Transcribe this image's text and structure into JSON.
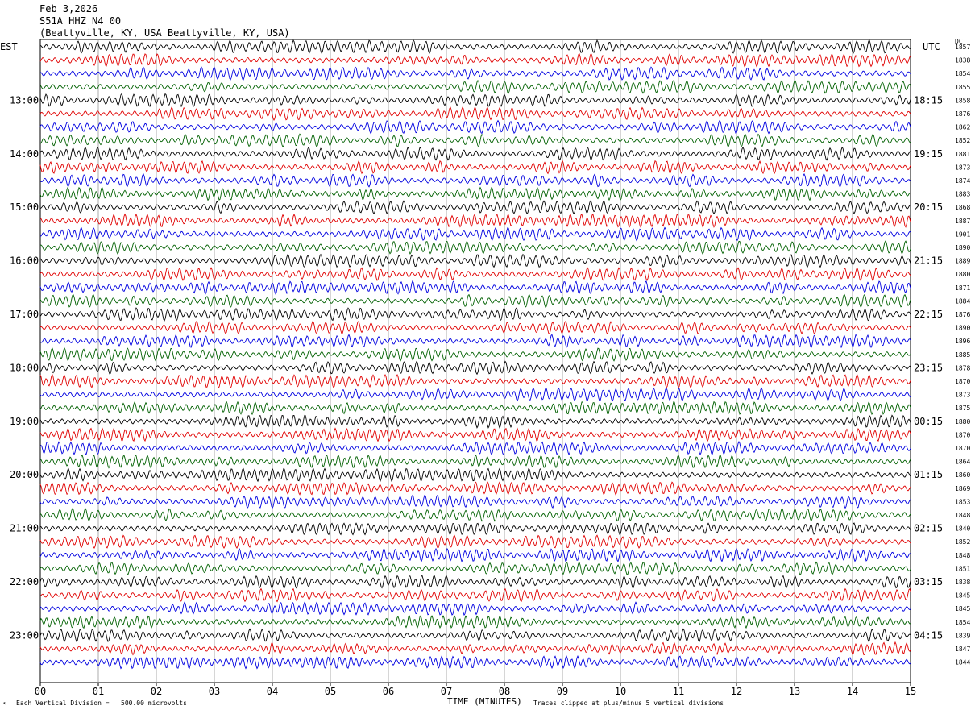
{
  "header": {
    "date": "Feb 3,2026",
    "station": "S51A HHZ N4 00",
    "location": "(Beattyville, KY, USA Beattyville, KY, USA)"
  },
  "labels": {
    "left_tz": "EST",
    "right_tz": "UTC",
    "dc_label": "DC"
  },
  "footer": {
    "scale_note": "Each Vertical Division =   500.00 microvolts",
    "xlabel": "TIME (MINUTES)",
    "clip_note": "Traces clipped at plus/minus 5 vertical divisions"
  },
  "colors": {
    "trace_cycle": [
      "#000000",
      "#e00000",
      "#0000e0",
      "#006000"
    ],
    "grid": "#000000"
  },
  "chart_data": {
    "type": "line",
    "description_type": "helicorder",
    "x_range": [
      0,
      15
    ],
    "x_ticks": [
      "00",
      "01",
      "02",
      "03",
      "04",
      "05",
      "06",
      "07",
      "08",
      "09",
      "10",
      "11",
      "12",
      "13",
      "14",
      "15"
    ],
    "est_hour_labels": [
      "13:00",
      "14:00",
      "15:00",
      "16:00",
      "17:00",
      "18:00",
      "19:00",
      "20:00",
      "21:00",
      "22:00",
      "23:00"
    ],
    "utc_hour_labels": [
      "18:15",
      "19:15",
      "20:15",
      "21:15",
      "22:15",
      "23:15",
      "00:15",
      "01:15",
      "02:15",
      "03:15",
      "04:15"
    ],
    "dc_offsets": [
      1857,
      1838,
      1854,
      1855,
      1858,
      1876,
      1862,
      1852,
      1881,
      1873,
      1874,
      1883,
      1868,
      1887,
      1901,
      1890,
      1889,
      1880,
      1871,
      1884,
      1876,
      1890,
      1896,
      1885,
      1878,
      1870,
      1873,
      1875,
      1880,
      1870,
      1870,
      1864,
      1860,
      1869,
      1853,
      1848,
      1840,
      1852,
      1848,
      1851,
      1838,
      1845,
      1845,
      1854,
      1839,
      1847,
      1844
    ]
  }
}
